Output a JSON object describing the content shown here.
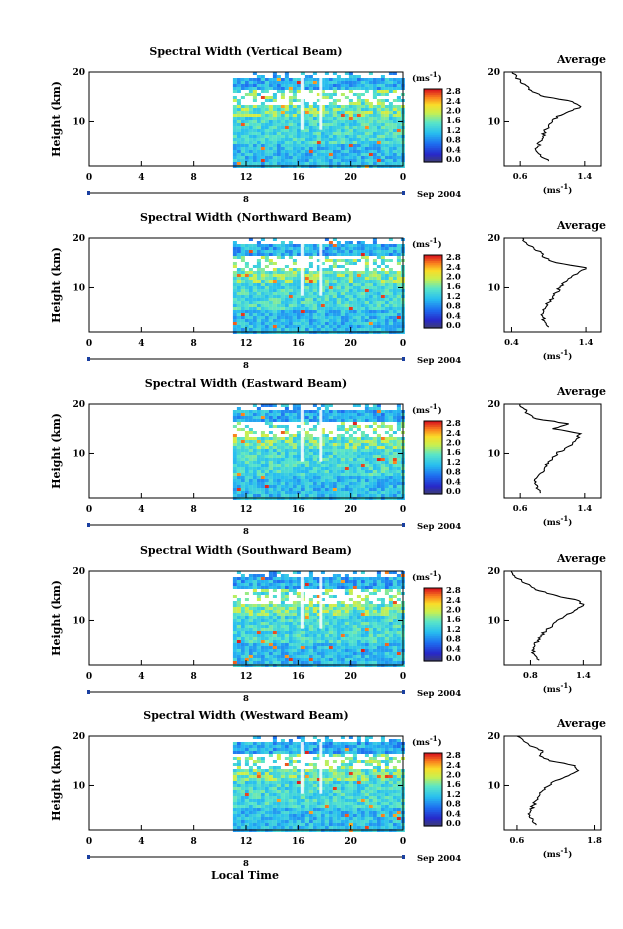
{
  "figure": {
    "xlabel": "Local Time",
    "ylabel": "Height (km)",
    "date_label": "Sep 2004",
    "day_label": "8",
    "colorbar_unit": "(ms",
    "colorbar_unit_exp": "-1",
    "colorbar_unit_close": ")",
    "profile_title": "Average",
    "profile_xlabel_base": "(ms",
    "profile_xlabel_exp": "-1",
    "profile_xlabel_close": ")"
  },
  "chart_data": [
    {
      "type": "heatmap",
      "title": "Spectral Width (Vertical Beam)",
      "xlabel": "Local Time",
      "ylabel": "Height (km)",
      "x_ticks": [
        "0",
        "4",
        "8",
        "12",
        "16",
        "20",
        "0"
      ],
      "y_ticks": [
        "10",
        "20"
      ],
      "xlim": [
        0,
        24
      ],
      "ylim": [
        1,
        20
      ],
      "data_start_hour": 11,
      "colorbar_ticks": [
        "0.0",
        "0.4",
        "0.8",
        "1.2",
        "1.6",
        "2.0",
        "2.4",
        "2.8"
      ],
      "profile": {
        "title": "Average",
        "x_ticks": [
          "0.6",
          "1.4"
        ],
        "xlim": [
          0.4,
          1.6
        ],
        "y_ticks": [
          "10",
          "20"
        ],
        "height": [
          2,
          3,
          4,
          5,
          6,
          7,
          8,
          9,
          10,
          11,
          12,
          13,
          14,
          15,
          16,
          17,
          18,
          19,
          20
        ],
        "value": [
          0.95,
          0.85,
          0.8,
          0.82,
          0.85,
          0.88,
          0.9,
          0.95,
          1.0,
          1.05,
          1.2,
          1.35,
          1.25,
          0.9,
          0.75,
          0.7,
          0.6,
          0.55,
          0.5
        ]
      }
    },
    {
      "type": "heatmap",
      "title": "Spectral Width (Northward Beam)",
      "xlabel": "Local Time",
      "ylabel": "Height (km)",
      "x_ticks": [
        "0",
        "4",
        "8",
        "12",
        "16",
        "20",
        "0"
      ],
      "y_ticks": [
        "10",
        "20"
      ],
      "xlim": [
        0,
        24
      ],
      "ylim": [
        1,
        20
      ],
      "data_start_hour": 11,
      "colorbar_ticks": [
        "0.0",
        "0.4",
        "0.8",
        "1.2",
        "1.6",
        "2.0",
        "2.4",
        "2.8"
      ],
      "profile": {
        "title": "Average",
        "x_ticks": [
          "0.4",
          "1.4"
        ],
        "xlim": [
          0.3,
          1.6
        ],
        "y_ticks": [
          "10",
          "20"
        ],
        "height": [
          2,
          3,
          4,
          5,
          6,
          7,
          8,
          9,
          10,
          11,
          12,
          13,
          14,
          15,
          16,
          17,
          18,
          19,
          20
        ],
        "value": [
          0.9,
          0.85,
          0.82,
          0.83,
          0.86,
          0.9,
          0.95,
          1.0,
          1.05,
          1.1,
          1.2,
          1.3,
          1.4,
          1.0,
          0.85,
          0.8,
          0.7,
          0.6,
          0.55
        ]
      }
    },
    {
      "type": "heatmap",
      "title": "Spectral Width (Eastward Beam)",
      "xlabel": "Local Time",
      "ylabel": "Height (km)",
      "x_ticks": [
        "0",
        "4",
        "8",
        "12",
        "16",
        "20",
        "0"
      ],
      "y_ticks": [
        "10",
        "20"
      ],
      "xlim": [
        0,
        24
      ],
      "ylim": [
        1,
        20
      ],
      "data_start_hour": 11,
      "colorbar_ticks": [
        "0.0",
        "0.4",
        "0.8",
        "1.2",
        "1.6",
        "2.0",
        "2.4",
        "2.8"
      ],
      "profile": {
        "title": "Average",
        "x_ticks": [
          "0.6",
          "1.4"
        ],
        "xlim": [
          0.4,
          1.6
        ],
        "y_ticks": [
          "10",
          "20"
        ],
        "height": [
          2,
          3,
          4,
          5,
          6,
          7,
          8,
          9,
          10,
          11,
          12,
          13,
          14,
          15,
          16,
          17,
          18,
          19,
          20
        ],
        "value": [
          0.85,
          0.8,
          0.78,
          0.8,
          0.85,
          0.9,
          0.95,
          1.0,
          1.05,
          1.15,
          1.25,
          1.3,
          1.35,
          1.0,
          1.2,
          0.8,
          0.7,
          0.65,
          0.6
        ]
      }
    },
    {
      "type": "heatmap",
      "title": "Spectral Width (Southward Beam)",
      "xlabel": "Local Time",
      "ylabel": "Height (km)",
      "x_ticks": [
        "0",
        "4",
        "8",
        "12",
        "16",
        "20",
        "0"
      ],
      "y_ticks": [
        "10",
        "20"
      ],
      "xlim": [
        0,
        24
      ],
      "ylim": [
        1,
        20
      ],
      "data_start_hour": 11,
      "colorbar_ticks": [
        "0.0",
        "0.4",
        "0.8",
        "1.2",
        "1.6",
        "2.0",
        "2.4",
        "2.8"
      ],
      "profile": {
        "title": "Average",
        "x_ticks": [
          "0.8",
          "1.4"
        ],
        "xlim": [
          0.5,
          1.6
        ],
        "y_ticks": [
          "10",
          "20"
        ],
        "height": [
          2,
          3,
          4,
          5,
          6,
          7,
          8,
          9,
          10,
          11,
          12,
          13,
          14,
          15,
          16,
          17,
          18,
          19,
          20
        ],
        "value": [
          0.9,
          0.85,
          0.82,
          0.85,
          0.88,
          0.92,
          0.98,
          1.05,
          1.1,
          1.2,
          1.3,
          1.4,
          1.35,
          1.1,
          0.9,
          0.8,
          0.7,
          0.62,
          0.58
        ]
      }
    },
    {
      "type": "heatmap",
      "title": "Spectral Width (Westward Beam)",
      "xlabel": "Local Time",
      "ylabel": "Height (km)",
      "x_ticks": [
        "0",
        "4",
        "8",
        "12",
        "16",
        "20",
        "0"
      ],
      "y_ticks": [
        "10",
        "20"
      ],
      "xlim": [
        0,
        24
      ],
      "ylim": [
        1,
        20
      ],
      "data_start_hour": 11,
      "colorbar_ticks": [
        "0.0",
        "0.4",
        "0.8",
        "1.2",
        "1.6",
        "2.0",
        "2.4",
        "2.8"
      ],
      "profile": {
        "title": "Average",
        "x_ticks": [
          "0.6",
          "1.8"
        ],
        "xlim": [
          0.4,
          1.9
        ],
        "y_ticks": [
          "10",
          "20"
        ],
        "height": [
          2,
          3,
          4,
          5,
          6,
          7,
          8,
          9,
          10,
          11,
          12,
          13,
          14,
          15,
          16,
          17,
          18,
          19,
          20
        ],
        "value": [
          0.9,
          0.85,
          0.8,
          0.82,
          0.85,
          0.9,
          0.95,
          1.0,
          1.1,
          1.2,
          1.4,
          1.55,
          1.5,
          1.1,
          0.95,
          1.0,
          0.8,
          0.7,
          0.6
        ]
      }
    }
  ]
}
